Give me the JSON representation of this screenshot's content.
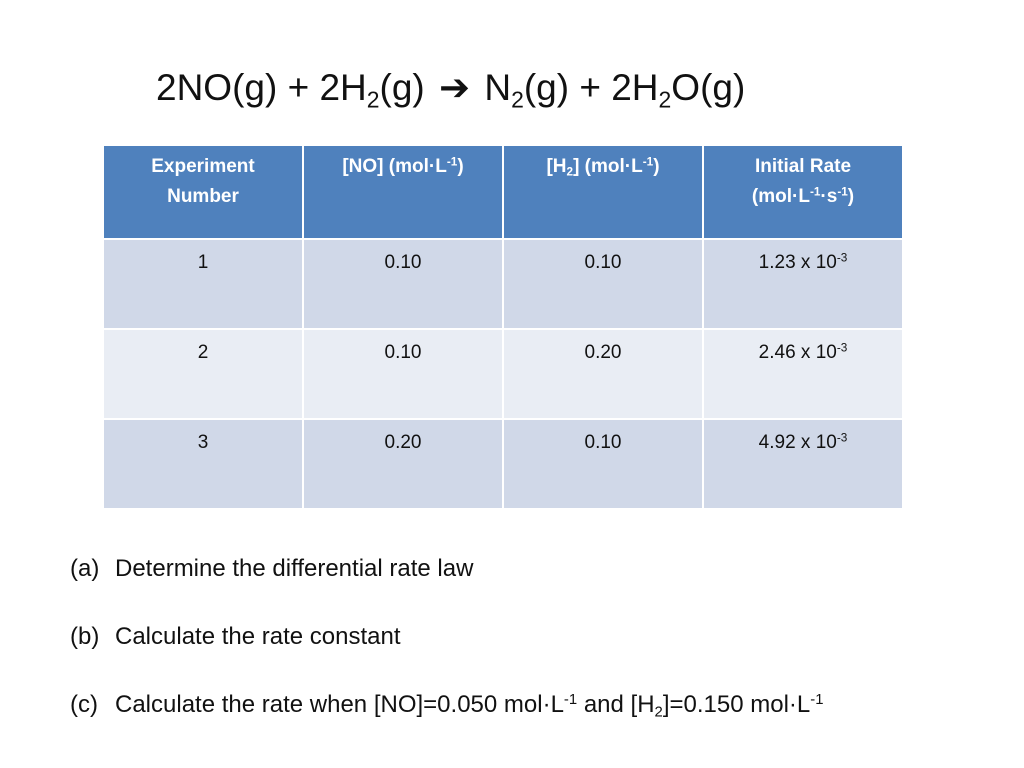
{
  "equation": {
    "part1": "2NO(g) + 2H",
    "sub1": "2",
    "part2": "(g)",
    "arrow": "➔",
    "part3": "N",
    "sub2": "2",
    "part4": "(g) + 2H",
    "sub3": "2",
    "part5": "O(g)"
  },
  "table": {
    "headers": {
      "col1": {
        "line1": "Experiment",
        "line2": "Number"
      },
      "col2": {
        "pre": "[NO] (mol·L",
        "sup": "-1",
        "post": ")"
      },
      "col3": {
        "pre": "[H",
        "sub": "2",
        "mid": "] (mol·L",
        "sup": "-1",
        "post": ")"
      },
      "col4": {
        "line1": "Initial Rate",
        "pre": "(mol·L",
        "sup1": "-1",
        "mid": "·s",
        "sup2": "-1",
        "post": ")"
      }
    },
    "rows": [
      {
        "exp": "1",
        "no": "0.10",
        "h2": "0.10",
        "rate_base": "1.23 x 10",
        "rate_exp": "-3"
      },
      {
        "exp": "2",
        "no": "0.10",
        "h2": "0.20",
        "rate_base": "2.46 x 10",
        "rate_exp": "-3"
      },
      {
        "exp": "3",
        "no": "0.20",
        "h2": "0.10",
        "rate_base": "4.92 x 10",
        "rate_exp": "-3"
      }
    ]
  },
  "questions": [
    {
      "label": "(a)",
      "text": "Determine the differential rate law"
    },
    {
      "label": "(b)",
      "text": "Calculate the rate constant"
    },
    {
      "label": "(c)",
      "text1": "Calculate the rate when [NO]=0.050 mol·L",
      "sup1": "-1",
      "text2": " and [H",
      "sub": "2",
      "text3": "]=0.150 mol·L",
      "sup2": "-1"
    }
  ]
}
